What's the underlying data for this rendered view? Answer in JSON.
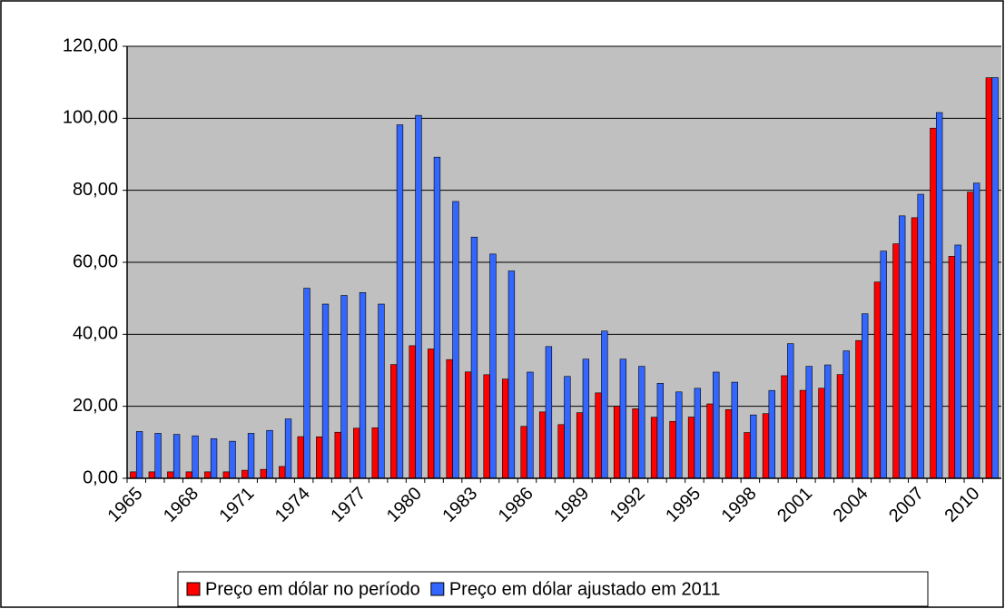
{
  "chart_data": {
    "type": "bar",
    "categories": [
      "1965",
      null,
      null,
      "1968",
      null,
      null,
      "1971",
      null,
      null,
      "1974",
      null,
      null,
      "1977",
      null,
      null,
      "1980",
      null,
      null,
      "1983",
      null,
      null,
      "1986",
      null,
      null,
      "1989",
      null,
      null,
      "1992",
      null,
      null,
      "1995",
      null,
      null,
      "1998",
      null,
      null,
      "2001",
      null,
      null,
      "2004",
      null,
      null,
      "2007",
      null,
      null,
      "2010",
      null
    ],
    "series": [
      {
        "name": "Preço em dólar no período",
        "color": "#ff0000",
        "values": [
          1.8,
          1.8,
          1.8,
          1.8,
          1.8,
          1.8,
          2.24,
          2.48,
          3.29,
          11.58,
          11.53,
          12.8,
          13.92,
          14.02,
          31.61,
          36.83,
          35.93,
          32.97,
          29.55,
          28.78,
          27.56,
          14.43,
          18.44,
          14.92,
          18.23,
          23.73,
          20.0,
          19.32,
          16.97,
          15.82,
          17.02,
          20.67,
          19.09,
          12.72,
          17.97,
          28.5,
          24.44,
          25.02,
          28.83,
          38.27,
          54.52,
          65.14,
          72.39,
          97.26,
          61.67,
          79.5,
          111.26
        ]
      },
      {
        "name": "Preço em dólar ajustado em 2011",
        "color": "#3366ff",
        "values": [
          13,
          12.5,
          12.2,
          11.8,
          11,
          10.3,
          12.5,
          13.3,
          16.5,
          52.8,
          48.4,
          50.8,
          51.6,
          48.4,
          98.2,
          100.8,
          89.2,
          76.9,
          67,
          62.3,
          57.6,
          29.5,
          36.6,
          28.3,
          33.1,
          40.9,
          33.1,
          31.1,
          26.4,
          24,
          25,
          29.5,
          26.7,
          17.6,
          24.4,
          37.4,
          31.1,
          31.5,
          35.4,
          45.7,
          63.1,
          72.9,
          78.9,
          101.6,
          64.8,
          82,
          111.3
        ]
      }
    ],
    "ylim": [
      0,
      120
    ],
    "yticks": [
      {
        "value": 0,
        "label": "0,00"
      },
      {
        "value": 20,
        "label": "20,00"
      },
      {
        "value": 40,
        "label": "40,00"
      },
      {
        "value": 60,
        "label": "60,00"
      },
      {
        "value": 80,
        "label": "80,00"
      },
      {
        "value": 100,
        "label": "100,00"
      },
      {
        "value": 120,
        "label": "120,00"
      }
    ],
    "grid": true,
    "plot_background": "#c0c0c0",
    "legend": "bottom"
  }
}
